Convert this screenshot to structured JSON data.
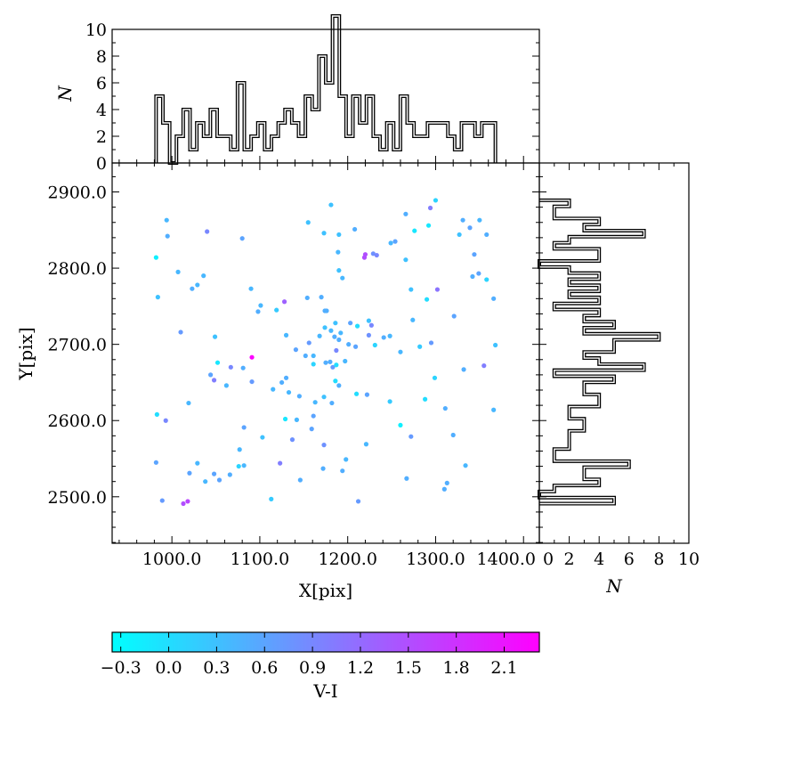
{
  "chart_data": {
    "type": "scatter",
    "title": "",
    "xlabel": "X[pix]",
    "ylabel": "Y[pix]",
    "xlim": [
      932,
      1418
    ],
    "ylim": [
      2439,
      2938
    ],
    "xticks": [
      "1000.0",
      "1100.0",
      "1200.0",
      "1300.0",
      "1400.0"
    ],
    "xtick_values": [
      1000,
      1100,
      1200,
      1300,
      1400
    ],
    "yticks": [
      "2500.0",
      "2600.0",
      "2700.0",
      "2800.0",
      "2900.0"
    ],
    "ytick_values": [
      2500,
      2600,
      2700,
      2800,
      2900
    ],
    "colorbar": {
      "label": "V-I",
      "colormap": "cool",
      "vmin": -0.354,
      "vmax": 2.32,
      "ticks": [
        "−0.3",
        "0.0",
        "0.3",
        "0.6",
        "0.9",
        "1.2",
        "1.5",
        "1.8",
        "2.1"
      ],
      "tick_values": [
        -0.3,
        0,
        0.3,
        0.6,
        0.9,
        1.2,
        1.5,
        1.8,
        2.1
      ]
    },
    "hist_top": {
      "ylabel": "N",
      "ylim": [
        0,
        10
      ],
      "ticks": [
        "0",
        "2",
        "4",
        "6",
        "8",
        "10"
      ],
      "tick_values": [
        0,
        2,
        4,
        6,
        8,
        10
      ],
      "bins": 50
    },
    "hist_right": {
      "xlabel": "N",
      "xlim": [
        0,
        10
      ],
      "ticks": [
        "0",
        "2",
        "4",
        "6",
        "8",
        "10"
      ],
      "tick_values": [
        0,
        2,
        4,
        6,
        8,
        10
      ],
      "bins": 50
    },
    "points": [
      [
        994,
        2863,
        0.4
      ],
      [
        995,
        2842,
        0.5
      ],
      [
        1040,
        2848,
        0.9
      ],
      [
        1080,
        2839,
        0.6
      ],
      [
        982,
        2814,
        -0.2
      ],
      [
        1155,
        2860,
        0.3
      ],
      [
        1173,
        2846,
        0.3
      ],
      [
        1007,
        2795,
        0.4
      ],
      [
        1036,
        2790,
        0.4
      ],
      [
        1029,
        2778,
        0.4
      ],
      [
        1023,
        2773,
        0.5
      ],
      [
        984,
        2762,
        0.3
      ],
      [
        1090,
        2773,
        0.4
      ],
      [
        1101,
        2751,
        0.4
      ],
      [
        1098,
        2743,
        0.5
      ],
      [
        1128,
        2756,
        1.3
      ],
      [
        1119,
        2745,
        0.2
      ],
      [
        1154,
        2761,
        0.5
      ],
      [
        1170,
        2762,
        0.5
      ],
      [
        1174,
        2744,
        0.5
      ],
      [
        1174,
        2722,
        0.3
      ],
      [
        1010,
        2716,
        0.7
      ],
      [
        1049,
        2710,
        0.3
      ],
      [
        1130,
        2712,
        0.4
      ],
      [
        1168,
        2711,
        0.4
      ],
      [
        1156,
        2702,
        0.7
      ],
      [
        1141,
        2693,
        0.6
      ],
      [
        1181,
        2883,
        0.3
      ],
      [
        1300,
        2889,
        0.1
      ],
      [
        1294,
        2879,
        1.0
      ],
      [
        1266,
        2871,
        0.5
      ],
      [
        1331,
        2863,
        0.5
      ],
      [
        1350,
        2863,
        0.4
      ],
      [
        1208,
        2851,
        0.5
      ],
      [
        1292,
        2856,
        -0.1
      ],
      [
        1276,
        2849,
        -0.1
      ],
      [
        1339,
        2853,
        0.6
      ],
      [
        1190,
        2844,
        0.3
      ],
      [
        1327,
        2844,
        0.3
      ],
      [
        1358,
        2844,
        0.5
      ],
      [
        1249,
        2833,
        0.4
      ],
      [
        1254,
        2835,
        0.6
      ],
      [
        1189,
        2821,
        0.4
      ],
      [
        1220,
        2818,
        1.5
      ],
      [
        1219,
        2814,
        1.5
      ],
      [
        1229,
        2819,
        0.8
      ],
      [
        1233,
        2817,
        0.9
      ],
      [
        1266,
        2811,
        0.3
      ],
      [
        1344,
        2818,
        0.6
      ],
      [
        1190,
        2797,
        0.3
      ],
      [
        1194,
        2787,
        0.4
      ],
      [
        1342,
        2789,
        0.5
      ],
      [
        1349,
        2793,
        0.6
      ],
      [
        1358,
        2785,
        0.1
      ],
      [
        1272,
        2772,
        0.3
      ],
      [
        1302,
        2772,
        1.1
      ],
      [
        1290,
        2759,
        0.0
      ],
      [
        1366,
        2760,
        0.5
      ],
      [
        1176,
        2744,
        0.5
      ],
      [
        1274,
        2732,
        0.4
      ],
      [
        1321,
        2737,
        0.6
      ],
      [
        1186,
        2728,
        0.3
      ],
      [
        1203,
        2728,
        0.6
      ],
      [
        1211,
        2724,
        0.0
      ],
      [
        1224,
        2731,
        0.3
      ],
      [
        1227,
        2725,
        0.9
      ],
      [
        1181,
        2718,
        0.4
      ],
      [
        1192,
        2715,
        0.4
      ],
      [
        1185,
        2710,
        0.5
      ],
      [
        1190,
        2706,
        0.5
      ],
      [
        1224,
        2712,
        0.8
      ],
      [
        1201,
        2700,
        0.5
      ],
      [
        1209,
        2697,
        0.6
      ],
      [
        1231,
        2699,
        0.1
      ],
      [
        1241,
        2709,
        0.5
      ],
      [
        1248,
        2711,
        0.4
      ],
      [
        1187,
        2692,
        0.9
      ],
      [
        1260,
        2690,
        0.4
      ],
      [
        1282,
        2697,
        0.2
      ],
      [
        1295,
        2702,
        0.7
      ],
      [
        1368,
        2699,
        0.3
      ],
      [
        1091,
        2683,
        2.3
      ],
      [
        1052,
        2676,
        -0.1
      ],
      [
        1152,
        2685,
        0.5
      ],
      [
        1161,
        2685,
        0.4
      ],
      [
        1161,
        2674,
        0.1
      ],
      [
        1175,
        2676,
        0.5
      ],
      [
        1067,
        2670,
        0.9
      ],
      [
        1081,
        2669,
        0.5
      ],
      [
        1044,
        2660,
        0.6
      ],
      [
        1048,
        2653,
        1.0
      ],
      [
        1091,
        2651,
        0.7
      ],
      [
        1062,
        2646,
        0.4
      ],
      [
        1115,
        2641,
        0.4
      ],
      [
        1125,
        2650,
        0.5
      ],
      [
        1130,
        2656,
        0.5
      ],
      [
        1133,
        2637,
        0.4
      ],
      [
        1145,
        2632,
        0.5
      ],
      [
        1173,
        2631,
        0.3
      ],
      [
        1163,
        2624,
        0.4
      ],
      [
        1019,
        2623,
        0.4
      ],
      [
        983,
        2608,
        0.0
      ],
      [
        993,
        2600,
        0.9
      ],
      [
        1161,
        2606,
        0.6
      ],
      [
        1129,
        2602,
        -0.1
      ],
      [
        1142,
        2601,
        0.4
      ],
      [
        1082,
        2591,
        0.6
      ],
      [
        1159,
        2589,
        0.6
      ],
      [
        1103,
        2578,
        0.3
      ],
      [
        1137,
        2575,
        0.8
      ],
      [
        1173,
        2568,
        0.8
      ],
      [
        1077,
        2562,
        0.4
      ],
      [
        982,
        2545,
        0.6
      ],
      [
        1029,
        2544,
        0.4
      ],
      [
        1123,
        2544,
        1.0
      ],
      [
        1020,
        2531,
        0.6
      ],
      [
        1048,
        2530,
        0.6
      ],
      [
        1076,
        2540,
        0.1
      ],
      [
        1082,
        2541,
        0.4
      ],
      [
        1038,
        2520,
        0.4
      ],
      [
        1054,
        2522,
        0.6
      ],
      [
        1066,
        2529,
        0.5
      ],
      [
        1172,
        2537,
        0.5
      ],
      [
        1146,
        2522,
        0.5
      ],
      [
        989,
        2495,
        0.7
      ],
      [
        1013,
        2491,
        1.5
      ],
      [
        1018,
        2494,
        1.6
      ],
      [
        1113,
        2497,
        0.2
      ],
      [
        1180,
        2677,
        0.5
      ],
      [
        1183,
        2670,
        0.7
      ],
      [
        1187,
        2673,
        0.0
      ],
      [
        1197,
        2678,
        0.4
      ],
      [
        1332,
        2667,
        0.5
      ],
      [
        1355,
        2672,
        1.0
      ],
      [
        1186,
        2652,
        0.0
      ],
      [
        1190,
        2646,
        0.5
      ],
      [
        1299,
        2656,
        0.1
      ],
      [
        1210,
        2635,
        0.0
      ],
      [
        1222,
        2634,
        0.6
      ],
      [
        1182,
        2623,
        0.5
      ],
      [
        1248,
        2625,
        0.2
      ],
      [
        1288,
        2628,
        0.0
      ],
      [
        1311,
        2616,
        0.5
      ],
      [
        1366,
        2614,
        0.4
      ],
      [
        1260,
        2594,
        -0.2
      ],
      [
        1272,
        2579,
        0.7
      ],
      [
        1320,
        2581,
        0.5
      ],
      [
        1221,
        2569,
        0.4
      ],
      [
        1198,
        2549,
        0.4
      ],
      [
        1194,
        2534,
        0.5
      ],
      [
        1334,
        2541,
        0.4
      ],
      [
        1267,
        2524,
        0.5
      ],
      [
        1313,
        2518,
        0.5
      ],
      [
        1310,
        2510,
        0.5
      ],
      [
        1212,
        2494,
        0.7
      ]
    ]
  }
}
